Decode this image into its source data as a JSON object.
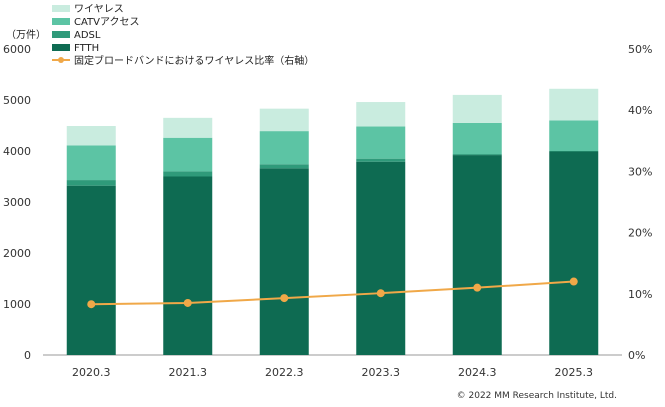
{
  "chart_data": {
    "type": "bar",
    "stacked": true,
    "unit_label": "（万件）",
    "categories": [
      "2020.3",
      "2021.3",
      "2022.3",
      "2023.3",
      "2024.3",
      "2025.3"
    ],
    "series": [
      {
        "name": "FTTH",
        "values": [
          3320,
          3500,
          3660,
          3790,
          3920,
          3990
        ],
        "color": "#0e6b52"
      },
      {
        "name": "ADSL",
        "values": [
          110,
          100,
          80,
          60,
          20,
          10
        ],
        "color": "#2f9a7a"
      },
      {
        "name": "CATVアクセス",
        "values": [
          680,
          660,
          650,
          630,
          610,
          600
        ],
        "color": "#5cc4a4"
      },
      {
        "name": "ワイヤレス",
        "values": [
          380,
          390,
          440,
          480,
          550,
          620
        ],
        "color": "#c9ecdf"
      }
    ],
    "line_series": {
      "name": "固定ブロードバンドにおけるワイヤレス比率（右軸）",
      "values": [
        8.3,
        8.5,
        9.3,
        10.1,
        11.0,
        12.0
      ],
      "color": "#f0a848"
    },
    "ylim": [
      0,
      6000
    ],
    "y_ticks": [
      "0",
      "1000",
      "2000",
      "3000",
      "4000",
      "5000",
      "6000"
    ],
    "y2lim": [
      0,
      50
    ],
    "y2_ticks": [
      "0%",
      "10%",
      "20%",
      "30%",
      "40%",
      "50%"
    ],
    "legend_position": "top-left",
    "grid": false,
    "copyright": "© 2022 MM Research Institute, Ltd."
  }
}
